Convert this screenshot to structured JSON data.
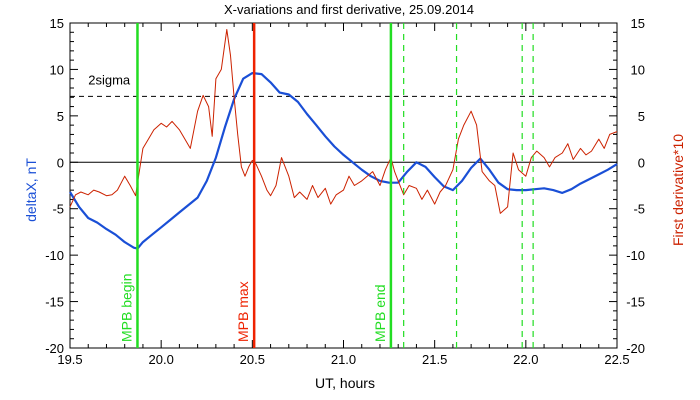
{
  "chart_data": {
    "type": "line",
    "title": "X-variations and first derivative, 25.09.2014",
    "xlabel": "UT, hours",
    "ylabel_left": "deltaX, nT",
    "ylabel_right": "First derivative*10",
    "xlim": [
      19.5,
      22.5
    ],
    "ylim": [
      -20,
      15
    ],
    "x_ticks": [
      "19.5",
      "20.0",
      "20.5",
      "21.0",
      "21.5",
      "22.0",
      "22.5"
    ],
    "y_ticks": [
      "-20",
      "-15",
      "-10",
      "-5",
      "0",
      "5",
      "10",
      "15"
    ],
    "colors": {
      "deltaX": "#1a4fd6",
      "derivative": "#cc2200",
      "mpb_green": "#22dd22",
      "mpb_max": "#ee2200",
      "threshold": "#000000"
    },
    "threshold": {
      "label": "2sigma",
      "value": 7.1
    },
    "zero_line": 0,
    "markers": [
      {
        "x": 19.87,
        "label": "MPB begin",
        "color": "#22dd22",
        "style": "solid"
      },
      {
        "x": 20.51,
        "label": "MPB max",
        "color": "#ee2200",
        "style": "solid"
      },
      {
        "x": 21.26,
        "label": "MPB end",
        "color": "#22dd22",
        "style": "solid"
      },
      {
        "x": 21.33,
        "label": "",
        "color": "#22dd22",
        "style": "dashed"
      },
      {
        "x": 21.62,
        "label": "",
        "color": "#22dd22",
        "style": "dashed"
      },
      {
        "x": 21.98,
        "label": "",
        "color": "#22dd22",
        "style": "dashed"
      },
      {
        "x": 22.04,
        "label": "",
        "color": "#22dd22",
        "style": "dashed"
      }
    ],
    "series": [
      {
        "key": "deltaX",
        "axis": "left",
        "x": [
          19.5,
          19.55,
          19.6,
          19.65,
          19.7,
          19.75,
          19.8,
          19.85,
          19.87,
          19.9,
          19.95,
          20.0,
          20.05,
          20.1,
          20.15,
          20.2,
          20.25,
          20.3,
          20.35,
          20.4,
          20.45,
          20.5,
          20.55,
          20.6,
          20.65,
          20.7,
          20.75,
          20.8,
          20.85,
          20.9,
          20.95,
          21.0,
          21.05,
          21.1,
          21.15,
          21.2,
          21.25,
          21.3,
          21.35,
          21.4,
          21.45,
          21.5,
          21.55,
          21.6,
          21.65,
          21.7,
          21.75,
          21.8,
          21.85,
          21.9,
          21.95,
          22.0,
          22.05,
          22.1,
          22.15,
          22.2,
          22.25,
          22.3,
          22.35,
          22.4,
          22.45,
          22.5
        ],
        "y": [
          -3.2,
          -4.8,
          -6.0,
          -6.5,
          -7.2,
          -7.8,
          -8.6,
          -9.2,
          -9.3,
          -8.6,
          -7.8,
          -7.0,
          -6.2,
          -5.4,
          -4.6,
          -3.8,
          -2.0,
          0.5,
          3.8,
          6.8,
          9.0,
          9.6,
          9.5,
          8.6,
          7.5,
          7.3,
          6.5,
          5.2,
          4.0,
          2.8,
          1.7,
          0.8,
          0.0,
          -0.8,
          -1.5,
          -2.0,
          -2.2,
          -2.2,
          -1.0,
          0.0,
          -0.5,
          -1.6,
          -2.6,
          -3.0,
          -2.0,
          -0.6,
          0.4,
          -0.8,
          -2.2,
          -2.9,
          -3.0,
          -3.0,
          -2.9,
          -2.8,
          -3.0,
          -3.3,
          -2.9,
          -2.3,
          -1.8,
          -1.3,
          -0.8,
          -0.2
        ]
      },
      {
        "key": "derivative",
        "axis": "right",
        "x": [
          19.5,
          19.53,
          19.56,
          19.6,
          19.63,
          19.66,
          19.7,
          19.73,
          19.76,
          19.8,
          19.83,
          19.86,
          19.88,
          19.9,
          19.93,
          19.96,
          20.0,
          20.03,
          20.06,
          20.1,
          20.13,
          20.16,
          20.2,
          20.23,
          20.26,
          20.28,
          20.3,
          20.33,
          20.36,
          20.38,
          20.4,
          20.42,
          20.44,
          20.46,
          20.48,
          20.5,
          20.52,
          20.55,
          20.58,
          20.6,
          20.63,
          20.66,
          20.7,
          20.73,
          20.76,
          20.8,
          20.83,
          20.86,
          20.9,
          20.93,
          20.96,
          21.0,
          21.03,
          21.06,
          21.1,
          21.13,
          21.16,
          21.2,
          21.23,
          21.26,
          21.28,
          21.3,
          21.33,
          21.36,
          21.4,
          21.43,
          21.46,
          21.5,
          21.53,
          21.56,
          21.6,
          21.63,
          21.66,
          21.7,
          21.73,
          21.76,
          21.8,
          21.83,
          21.86,
          21.9,
          21.93,
          21.96,
          22.0,
          22.03,
          22.06,
          22.1,
          22.13,
          22.16,
          22.2,
          22.23,
          22.26,
          22.3,
          22.33,
          22.36,
          22.4,
          22.43,
          22.46,
          22.5
        ],
        "y": [
          -4.8,
          -3.5,
          -3.2,
          -3.5,
          -3.0,
          -3.2,
          -3.6,
          -3.5,
          -3.0,
          -1.5,
          -2.5,
          -3.6,
          -1.0,
          1.5,
          2.5,
          3.5,
          4.2,
          3.8,
          4.4,
          3.5,
          2.5,
          1.5,
          5.5,
          7.2,
          6.0,
          2.8,
          9.0,
          10.0,
          14.3,
          11.5,
          7.0,
          3.0,
          -0.5,
          -1.5,
          -0.5,
          0.2,
          -0.2,
          -1.5,
          -3.0,
          -3.6,
          -2.5,
          0.5,
          -1.5,
          -3.8,
          -3.2,
          -4.0,
          -2.5,
          -3.8,
          -2.8,
          -4.5,
          -3.5,
          -3.0,
          -1.5,
          -2.5,
          -2.0,
          -1.5,
          -1.0,
          -2.5,
          -0.8,
          0.5,
          -1.0,
          -2.0,
          -3.5,
          -2.5,
          -2.8,
          -4.0,
          -3.0,
          -4.5,
          -3.2,
          -2.5,
          -0.8,
          2.5,
          4.0,
          5.5,
          4.0,
          -1.0,
          -2.0,
          -2.5,
          -5.5,
          -4.8,
          1.0,
          -0.8,
          -1.5,
          0.5,
          1.2,
          0.5,
          -0.5,
          0.5,
          1.0,
          2.0,
          0.3,
          1.5,
          0.8,
          1.2,
          2.5,
          1.5,
          3.0,
          3.3
        ]
      }
    ]
  }
}
